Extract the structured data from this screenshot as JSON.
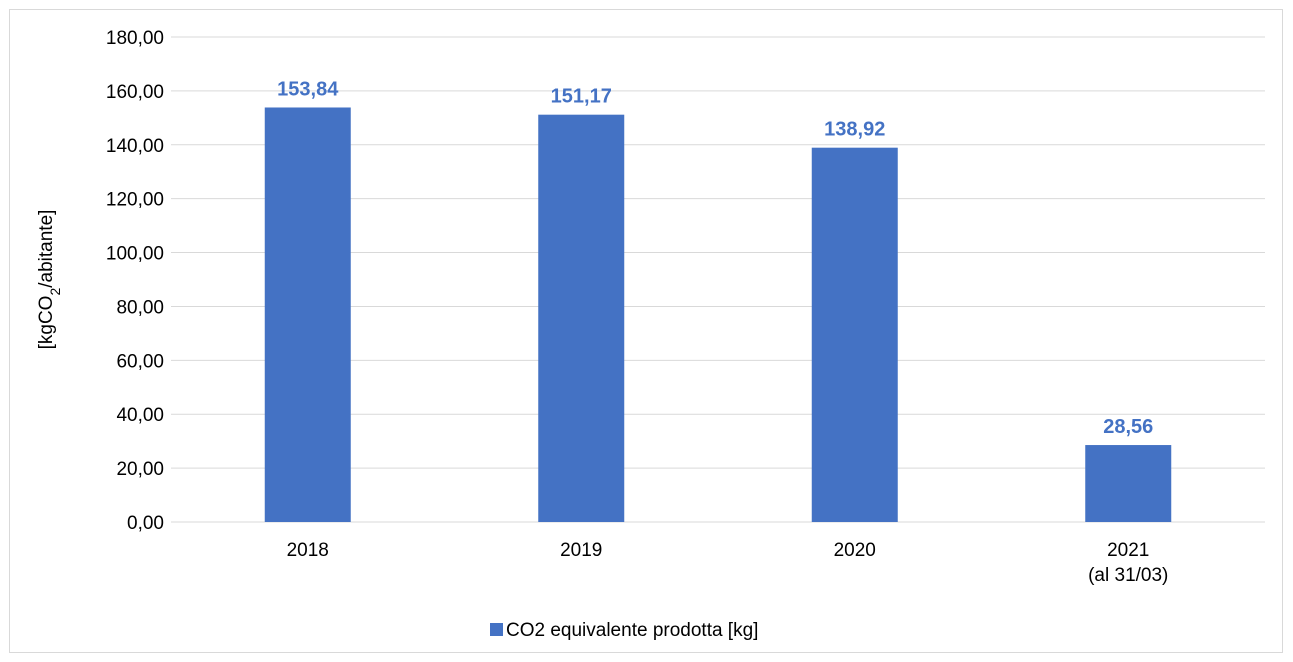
{
  "chart_data": {
    "type": "bar",
    "categories": [
      [
        "2018"
      ],
      [
        "2019"
      ],
      [
        "2020"
      ],
      [
        "2021",
        "(al 31/03)"
      ]
    ],
    "series": [
      {
        "name": "CO2 equivalente prodotta [kg]",
        "values": [
          153.84,
          151.17,
          138.92,
          28.56
        ],
        "data_labels": [
          "153,84",
          "151,17",
          "138,92",
          "28,56"
        ],
        "color": "#4472c4"
      }
    ],
    "ylabel": "[kgCO2/abitante]",
    "ylabel_parts": {
      "before": "[kgCO",
      "sub": "2",
      "after": "/abitante]"
    },
    "ylim": [
      0,
      180
    ],
    "yticks": [
      0,
      20,
      40,
      60,
      80,
      100,
      120,
      140,
      160,
      180
    ],
    "ytick_labels": [
      "0,00",
      "20,00",
      "40,00",
      "60,00",
      "80,00",
      "100,00",
      "120,00",
      "140,00",
      "160,00",
      "180,00"
    ],
    "grid": true,
    "legend": "bottom",
    "colors": {
      "bar": "#4472c4",
      "label": "#4472c4",
      "grid": "#d9d9d9"
    }
  }
}
